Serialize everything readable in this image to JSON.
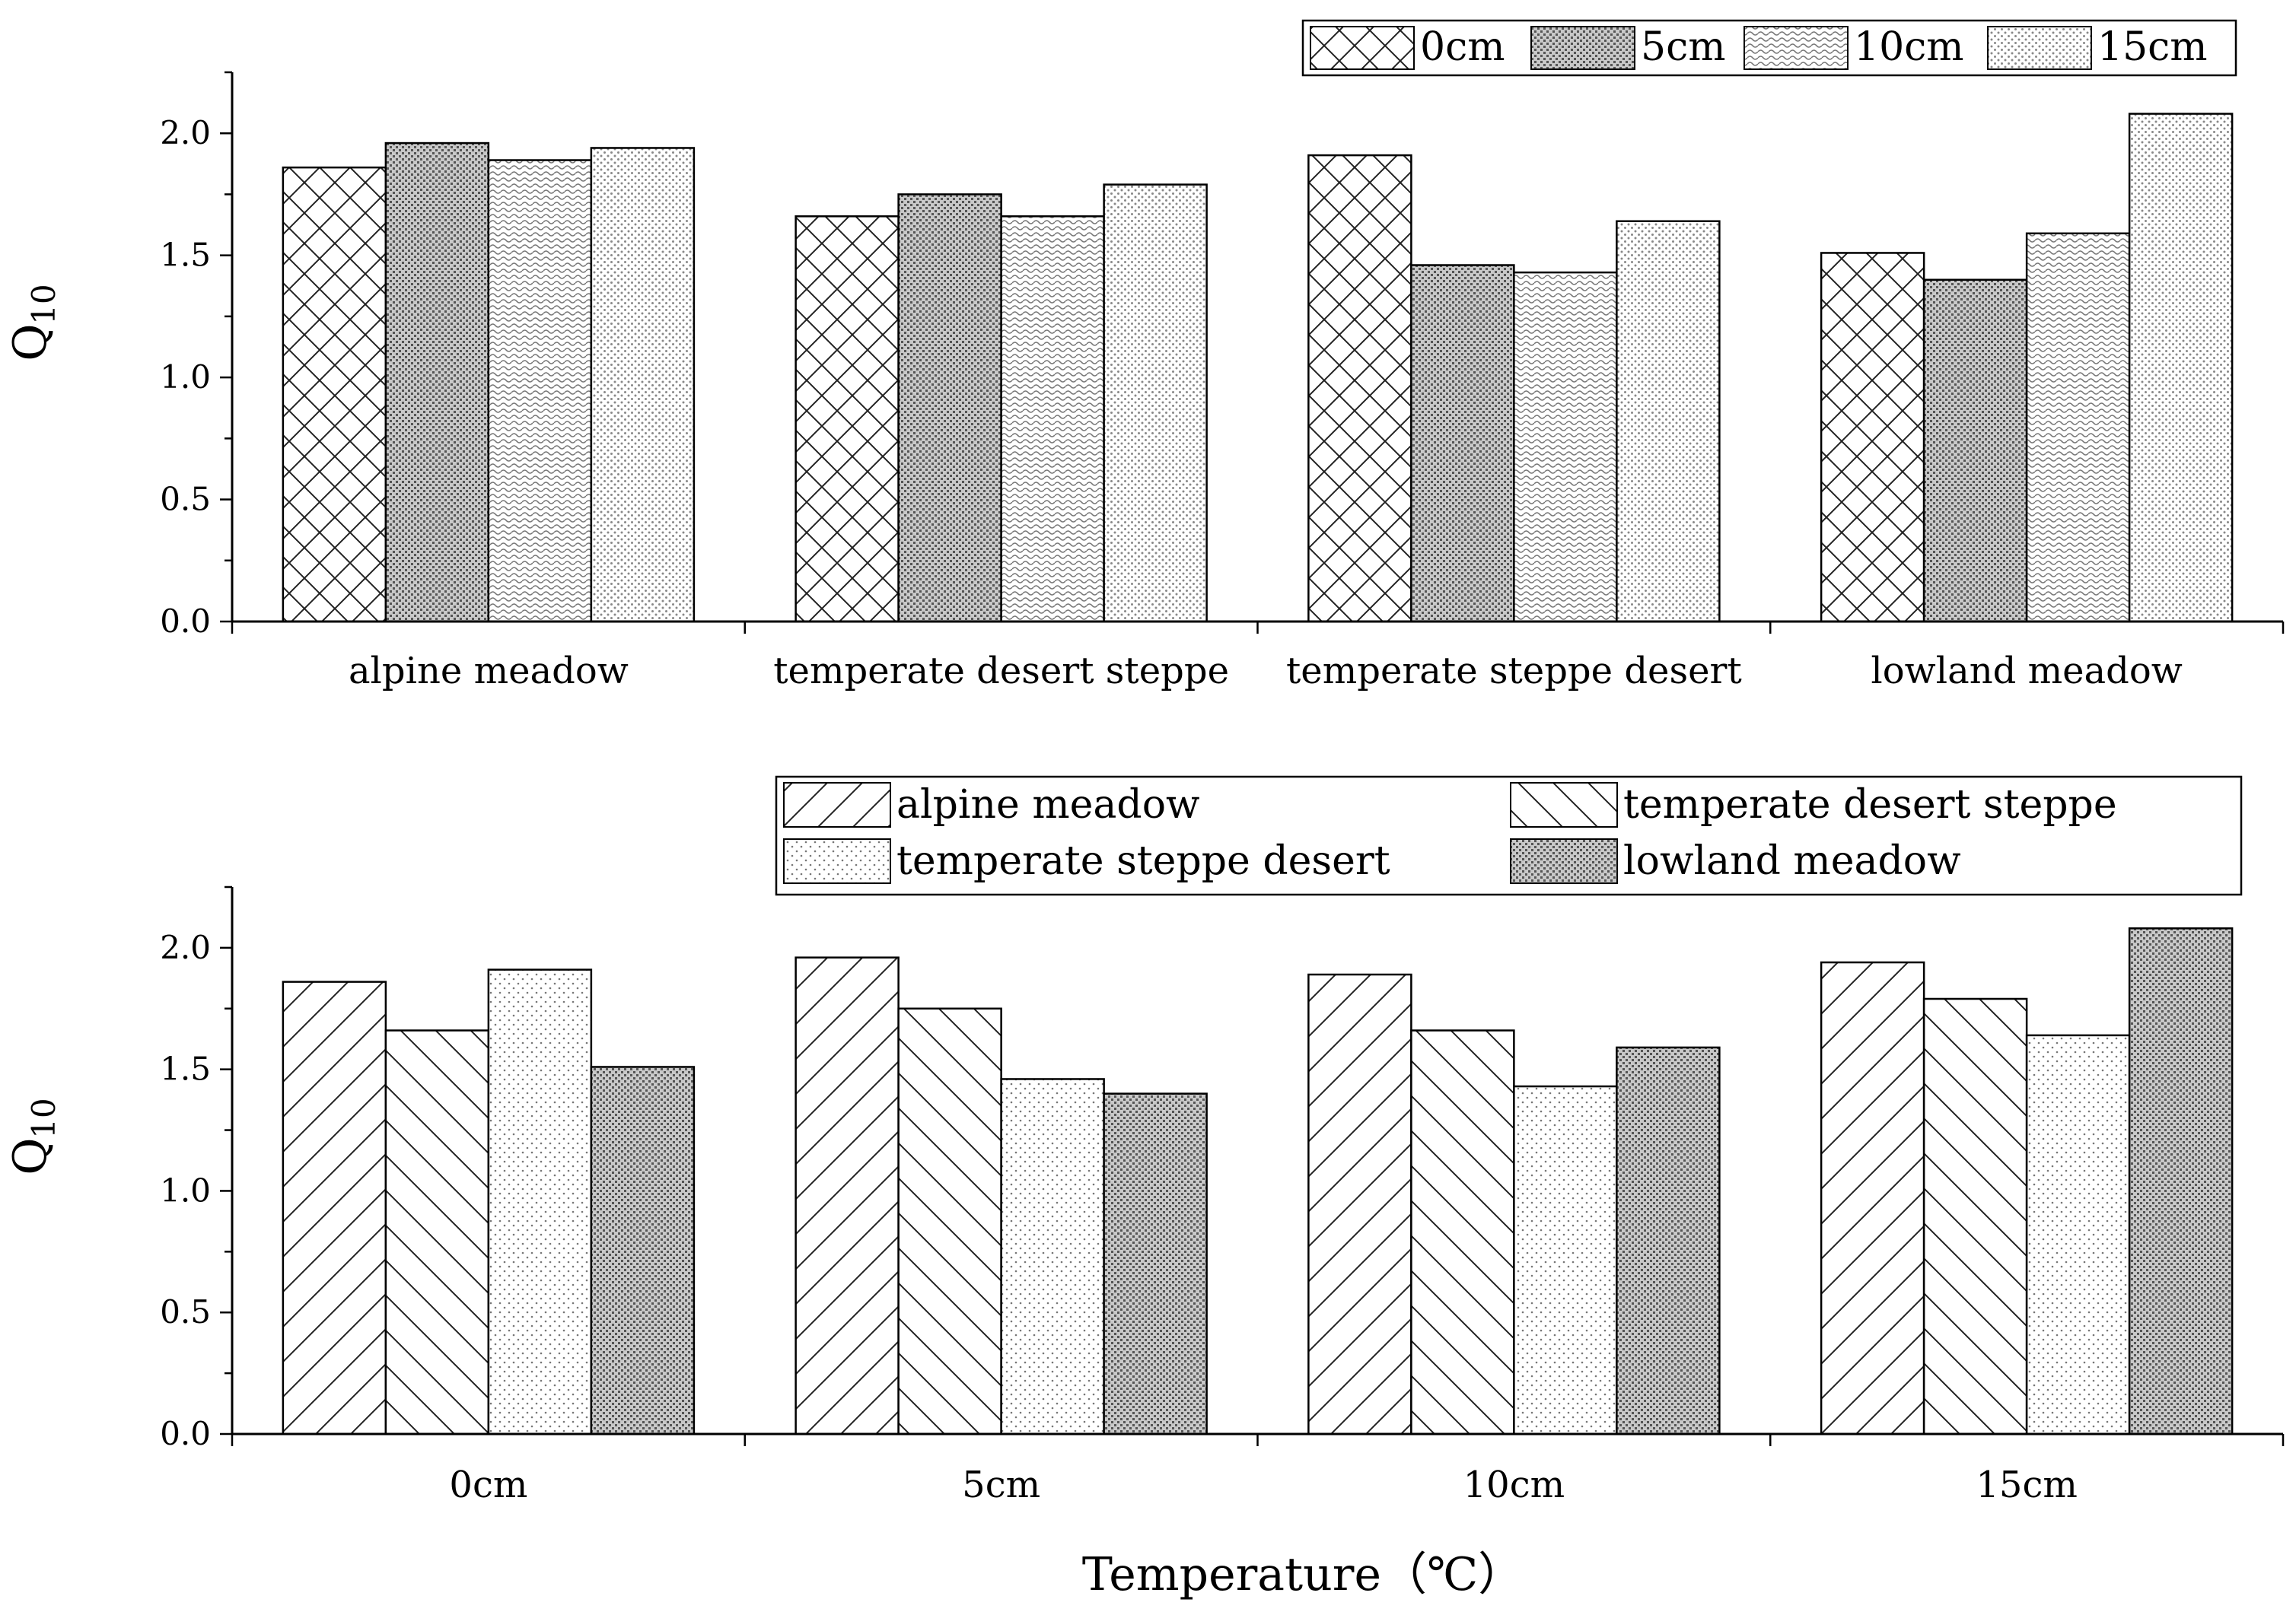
{
  "chart_data": [
    {
      "type": "bar",
      "id": "top",
      "xlabel": "",
      "ylabel_main": "Q",
      "ylabel_sub": "10",
      "ylim": [
        0,
        2.25
      ],
      "yticks": [
        "0.0",
        "0.5",
        "1.0",
        "1.5",
        "2.0"
      ],
      "categories": [
        "alpine meadow",
        "temperate desert steppe",
        "temperate steppe desert",
        "lowland meadow"
      ],
      "series": [
        {
          "name": "0cm",
          "pattern": "crosshatch",
          "values": [
            1.86,
            1.66,
            1.91,
            1.51
          ]
        },
        {
          "name": "5cm",
          "pattern": "dense",
          "values": [
            1.96,
            1.75,
            1.46,
            1.4
          ]
        },
        {
          "name": "10cm",
          "pattern": "wavy",
          "values": [
            1.89,
            1.66,
            1.43,
            1.59
          ]
        },
        {
          "name": "15cm",
          "pattern": "dotted",
          "values": [
            1.94,
            1.79,
            1.64,
            2.08
          ]
        }
      ],
      "legend_position": "top-right"
    },
    {
      "type": "bar",
      "id": "bottom",
      "xlabel": "Temperature（℃）",
      "ylabel_main": "Q",
      "ylabel_sub": "10",
      "ylim": [
        0,
        2.25
      ],
      "yticks": [
        "0.0",
        "0.5",
        "1.0",
        "1.5",
        "2.0"
      ],
      "categories": [
        "0cm",
        "5cm",
        "10cm",
        "15cm"
      ],
      "series": [
        {
          "name": "alpine meadow",
          "pattern": "fwd-diag",
          "values": [
            1.86,
            1.96,
            1.89,
            1.94
          ]
        },
        {
          "name": "temperate desert steppe",
          "pattern": "back-diag",
          "values": [
            1.66,
            1.75,
            1.66,
            1.79
          ]
        },
        {
          "name": "temperate steppe desert",
          "pattern": "light-dots",
          "values": [
            1.91,
            1.46,
            1.43,
            1.64
          ]
        },
        {
          "name": "lowland meadow",
          "pattern": "dense",
          "values": [
            1.51,
            1.4,
            1.59,
            2.08
          ]
        }
      ],
      "legend_position": "top-right"
    }
  ]
}
